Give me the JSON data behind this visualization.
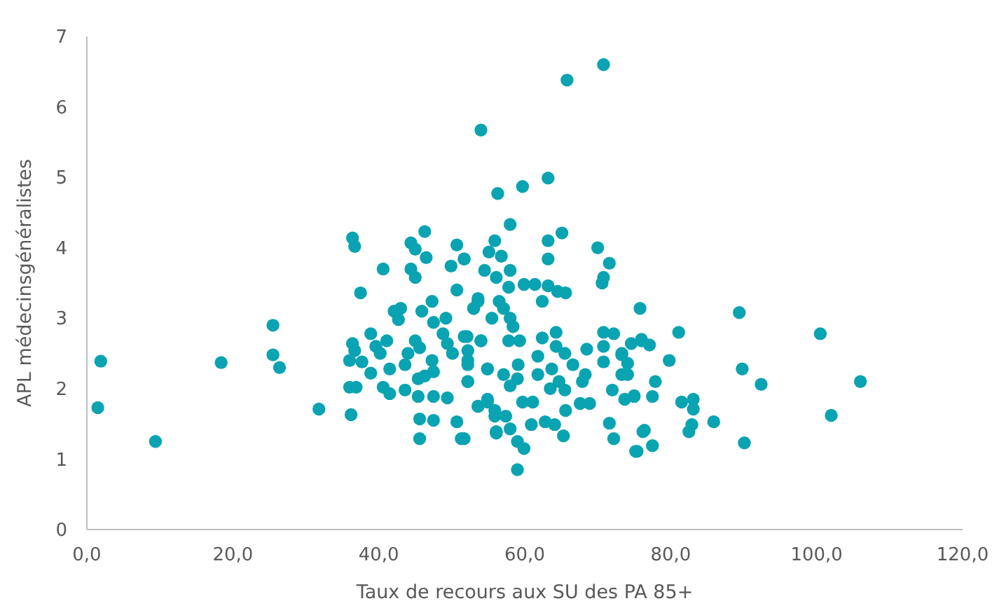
{
  "chart_data": {
    "type": "scatter",
    "xlabel": "Taux de recours aux SU des PA 85+",
    "ylabel": "APL médecinsgénéralistes",
    "xlim": [
      0,
      120
    ],
    "xticks": [
      {
        "value": 0,
        "label": "0,0"
      },
      {
        "value": 20,
        "label": "20,0"
      },
      {
        "value": 40,
        "label": "40,0"
      },
      {
        "value": 60,
        "label": "60,0"
      },
      {
        "value": 80,
        "label": "80,0"
      },
      {
        "value": 100,
        "label": "100,0"
      },
      {
        "value": 120,
        "label": "120,0"
      }
    ],
    "ylim": [
      0,
      7
    ],
    "yticks": [
      0,
      1,
      2,
      3,
      4,
      5,
      6,
      7
    ],
    "grid": false,
    "marker": "circle",
    "series": [
      {
        "color": "#0aa3b2",
        "x": [
          1.9,
          1.5,
          9.4,
          18.4,
          25.5,
          25.5,
          26.4,
          31.8,
          36.4,
          36.7,
          46.3,
          44.4,
          45,
          46.5,
          40.6,
          44.4,
          45,
          50.7,
          51.7,
          49.9,
          37.5,
          50.7,
          42.1,
          43,
          42.7,
          45.9,
          47.3,
          47.5,
          49.2,
          53.6,
          53,
          38.9,
          36.4,
          36.7,
          39.6,
          41.1,
          40.2,
          45,
          45.6,
          48.8,
          49.4,
          50.1,
          52.1,
          54,
          36,
          37.7,
          44,
          43.6,
          47.3,
          47.5,
          46.3,
          45.4,
          41.5,
          38.9,
          52.2,
          52.2,
          54.9,
          36,
          36.9,
          40.6,
          41.5,
          43.6,
          45.4,
          47.5,
          49.4,
          53.6,
          54.9,
          55.9,
          56.1,
          36.2,
          45.6,
          47.5,
          50.7,
          45.6,
          51.3,
          70.8,
          65.8,
          54,
          56.3,
          59.7,
          63.2,
          58,
          65.1,
          63.2,
          63.2,
          70,
          71.6,
          70.8,
          70.6,
          55.9,
          55.1,
          56.8,
          51.7,
          54.5,
          56.1,
          58,
          57.8,
          59.9,
          61.4,
          63.2,
          64.5,
          65.6,
          62.4,
          53.6,
          53,
          56.5,
          57.1,
          55.5,
          58,
          58.4,
          75.8,
          51.7,
          54,
          57.8,
          59.3,
          62.4,
          64.3,
          64.3,
          70.8,
          72.2,
          76,
          68.5,
          70.8,
          70.8,
          73.3,
          74.6,
          52.2,
          52.2,
          52.2,
          54.9,
          57.1,
          59.1,
          59,
          58,
          61.8,
          61.8,
          63.7,
          65.5,
          66.6,
          64.7,
          63.5,
          65.5,
          68.3,
          67.9,
          73.3,
          74.1,
          72,
          73.7,
          75,
          53.6,
          54.9,
          55.9,
          57.4,
          59.7,
          61.1,
          65.6,
          67.6,
          68.9,
          51.7,
          56.1,
          58,
          60.9,
          62.8,
          64.1,
          65.3,
          59,
          59.9,
          59,
          71.6,
          72.2,
          75.4,
          76.2,
          89.4,
          81.1,
          76,
          77.1,
          73.3,
          79.8,
          89.8,
          92.4,
          74.1,
          77.9,
          75,
          77.5,
          81.5,
          83.1,
          83.1,
          82.9,
          82.5,
          85.9,
          76.4,
          75.2,
          77.5,
          90.1,
          100.5,
          106,
          102
        ],
        "values": [
          2.39,
          1.73,
          1.25,
          2.37,
          2.9,
          2.48,
          2.3,
          1.71,
          4.14,
          4.02,
          4.23,
          4.07,
          3.98,
          3.86,
          3.7,
          3.7,
          3.58,
          4.04,
          3.84,
          3.74,
          3.36,
          3.4,
          3.1,
          3.14,
          2.98,
          3.1,
          3.24,
          2.94,
          3.0,
          3.24,
          3.14,
          2.78,
          2.64,
          2.54,
          2.6,
          2.68,
          2.5,
          2.68,
          2.58,
          2.78,
          2.64,
          2.5,
          2.74,
          2.68,
          2.4,
          2.38,
          2.5,
          2.34,
          2.4,
          2.24,
          2.18,
          2.14,
          2.28,
          2.22,
          2.4,
          2.1,
          2.28,
          2.02,
          2.02,
          2.02,
          1.93,
          1.98,
          1.89,
          1.89,
          1.87,
          1.75,
          1.85,
          1.61,
          1.39,
          1.63,
          1.57,
          1.55,
          1.53,
          1.29,
          1.29,
          6.6,
          6.38,
          5.67,
          4.77,
          4.87,
          4.99,
          4.33,
          4.21,
          4.1,
          3.84,
          4.0,
          3.78,
          3.58,
          3.5,
          4.1,
          3.94,
          3.88,
          3.84,
          3.68,
          3.58,
          3.68,
          3.44,
          3.48,
          3.48,
          3.46,
          3.38,
          3.36,
          3.24,
          3.28,
          3.14,
          3.24,
          3.14,
          3.0,
          3.0,
          2.88,
          3.14,
          2.74,
          2.68,
          2.68,
          2.68,
          2.72,
          2.8,
          2.6,
          2.8,
          2.78,
          2.7,
          2.56,
          2.6,
          2.38,
          2.5,
          2.64,
          2.54,
          2.34,
          2.1,
          2.28,
          2.2,
          2.34,
          2.14,
          2.04,
          2.46,
          2.2,
          2.28,
          2.5,
          2.34,
          2.1,
          2.0,
          1.98,
          2.2,
          2.1,
          2.2,
          2.36,
          1.98,
          1.85,
          1.9,
          1.75,
          1.81,
          1.69,
          1.61,
          1.81,
          1.81,
          1.69,
          1.79,
          1.79,
          1.29,
          1.37,
          1.43,
          1.49,
          1.53,
          1.49,
          1.33,
          1.25,
          1.15,
          0.85,
          1.51,
          1.29,
          1.11,
          1.39,
          3.08,
          2.8,
          2.68,
          2.62,
          2.48,
          2.4,
          2.28,
          2.06,
          2.2,
          2.1,
          1.89,
          1.89,
          1.81,
          1.85,
          1.71,
          1.49,
          1.39,
          1.53,
          1.41,
          1.11,
          1.19,
          1.23,
          2.78,
          2.1,
          1.62
        ]
      }
    ]
  }
}
